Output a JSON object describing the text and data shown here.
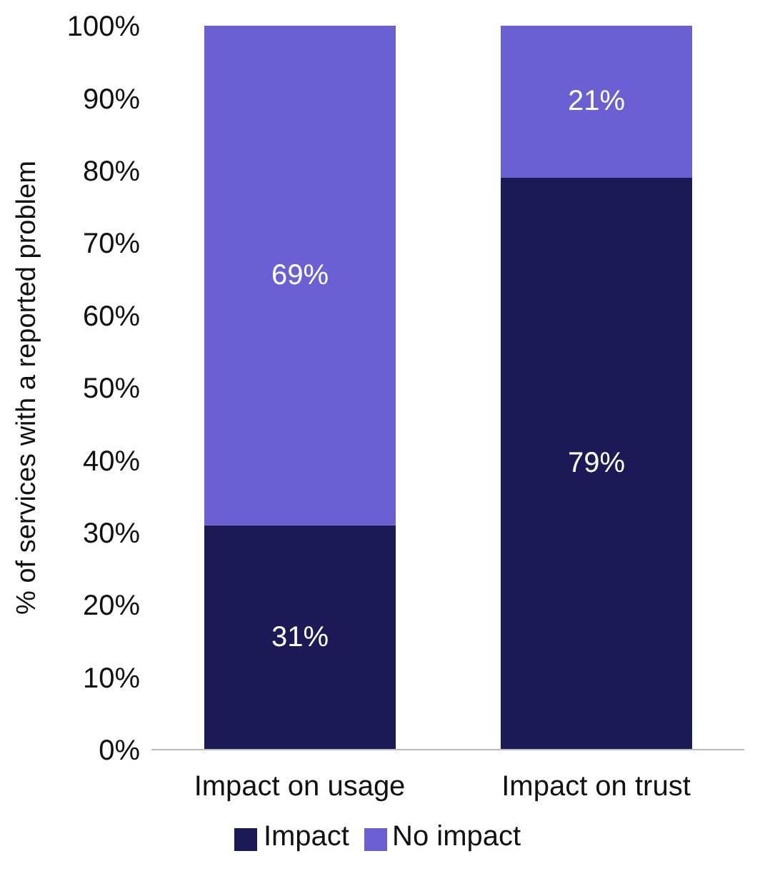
{
  "chart_data": {
    "type": "bar",
    "stacked": true,
    "ylabel": "% of services with a reported problem",
    "categories": [
      "Impact on usage",
      "Impact on trust"
    ],
    "series": [
      {
        "name": "Impact",
        "color": "#1c1a56",
        "values": [
          31,
          79
        ],
        "value_labels": [
          "31%",
          "79%"
        ]
      },
      {
        "name": "No impact",
        "color": "#6a5fd3",
        "values": [
          69,
          21
        ],
        "value_labels": [
          "69%",
          "21%"
        ]
      }
    ],
    "ylim": [
      0,
      100
    ],
    "yticks": [
      {
        "value": 0,
        "label": "0%"
      },
      {
        "value": 10,
        "label": "10%"
      },
      {
        "value": 20,
        "label": "20%"
      },
      {
        "value": 30,
        "label": "30%"
      },
      {
        "value": 40,
        "label": "40%"
      },
      {
        "value": 50,
        "label": "50%"
      },
      {
        "value": 60,
        "label": "60%"
      },
      {
        "value": 70,
        "label": "70%"
      },
      {
        "value": 80,
        "label": "80%"
      },
      {
        "value": 90,
        "label": "90%"
      },
      {
        "value": 100,
        "label": "100%"
      }
    ],
    "grid": false,
    "legend": "bottom"
  }
}
